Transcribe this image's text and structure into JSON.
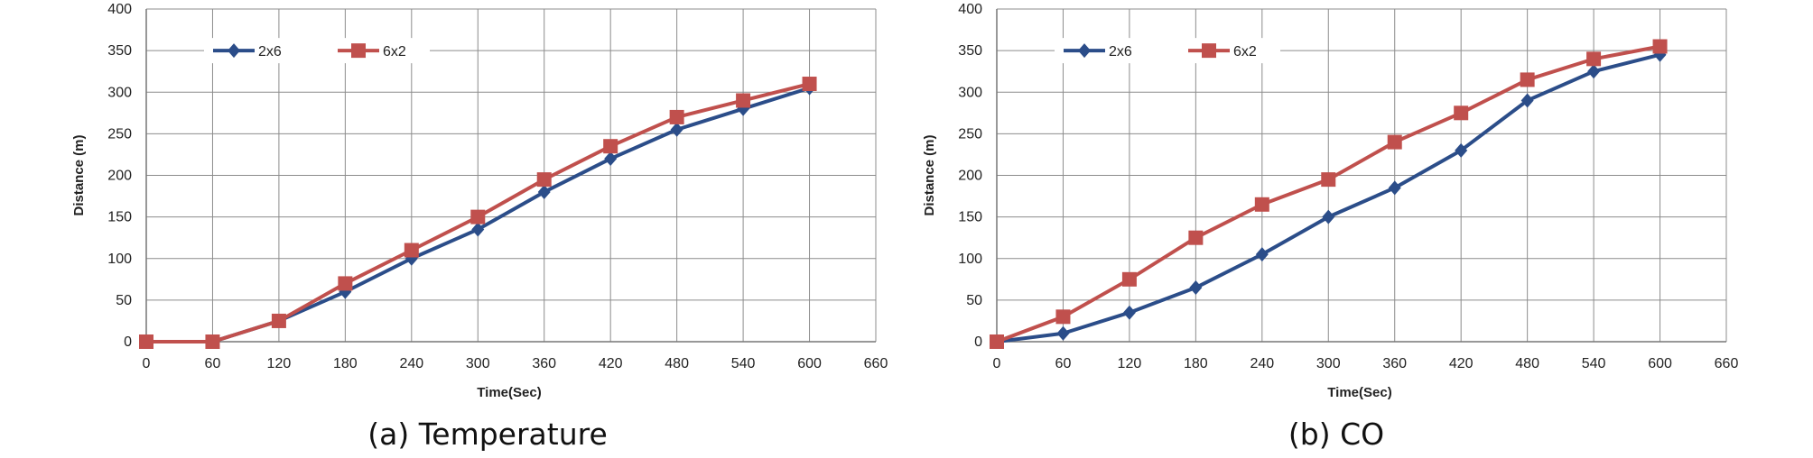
{
  "chart_data": [
    {
      "type": "line",
      "caption": "(a) Temperature",
      "xlabel": "Time(Sec)",
      "ylabel": "Distance  (m)",
      "xlim": [
        0,
        660
      ],
      "ylim": [
        0,
        400
      ],
      "xticks": [
        0,
        60,
        120,
        180,
        240,
        300,
        360,
        420,
        480,
        540,
        600,
        660
      ],
      "yticks": [
        0,
        50,
        100,
        150,
        200,
        250,
        300,
        350,
        400
      ],
      "grid": true,
      "legend_position": "top-left",
      "x": [
        0,
        60,
        120,
        180,
        240,
        300,
        360,
        420,
        480,
        540,
        600
      ],
      "series": [
        {
          "name": "2x6",
          "color": "#2b4d89",
          "marker": "diamond",
          "values": [
            0,
            0,
            25,
            60,
            100,
            135,
            180,
            220,
            255,
            280,
            305
          ]
        },
        {
          "name": "6x2",
          "color": "#c0504d",
          "marker": "square",
          "values": [
            0,
            0,
            25,
            70,
            110,
            150,
            195,
            235,
            270,
            290,
            310
          ]
        }
      ]
    },
    {
      "type": "line",
      "caption": "(b) CO",
      "xlabel": "Time(Sec)",
      "ylabel": "Distance  (m)",
      "xlim": [
        0,
        660
      ],
      "ylim": [
        0,
        400
      ],
      "xticks": [
        0,
        60,
        120,
        180,
        240,
        300,
        360,
        420,
        480,
        540,
        600,
        660
      ],
      "yticks": [
        0,
        50,
        100,
        150,
        200,
        250,
        300,
        350,
        400
      ],
      "grid": true,
      "legend_position": "top-left",
      "x": [
        0,
        60,
        120,
        180,
        240,
        300,
        360,
        420,
        480,
        540,
        600
      ],
      "series": [
        {
          "name": "2x6",
          "color": "#2b4d89",
          "marker": "diamond",
          "values": [
            0,
            10,
            35,
            65,
            105,
            150,
            185,
            230,
            290,
            325,
            345
          ]
        },
        {
          "name": "6x2",
          "color": "#c0504d",
          "marker": "square",
          "values": [
            0,
            30,
            75,
            125,
            165,
            195,
            240,
            275,
            315,
            340,
            355
          ]
        }
      ]
    }
  ]
}
